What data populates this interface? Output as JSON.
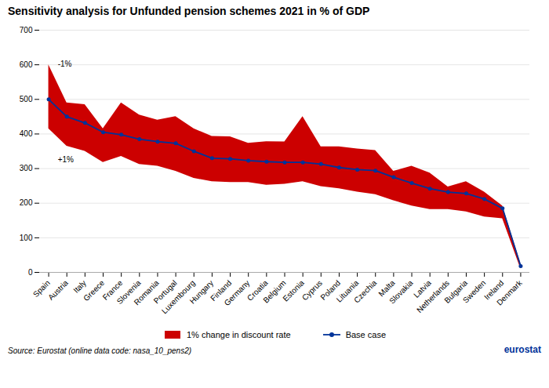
{
  "chart_data": {
    "type": "line",
    "title": "Sensitivity analysis for Unfunded pension schemes 2021 in % of GDP",
    "categories": [
      "Spain",
      "Austria",
      "Italy",
      "Greece",
      "France",
      "Slovenia",
      "Romania",
      "Portugal",
      "Luxembourg",
      "Hungary",
      "Finland",
      "Germany",
      "Croatia",
      "Belgium",
      "Estonia",
      "Cyprus",
      "Poland",
      "Lituania",
      "Czechia",
      "Malta",
      "Slovakia",
      "Latvia",
      "Netherlands",
      "Bulgaria",
      "Sweden",
      "Ireland",
      "Denmark"
    ],
    "series": [
      {
        "name": "1% change in discount rate",
        "type": "area",
        "color": "#cc0000",
        "lower": [
          415,
          365,
          350,
          318,
          335,
          312,
          307,
          292,
          272,
          262,
          260,
          260,
          252,
          255,
          262,
          248,
          242,
          232,
          225,
          207,
          192,
          182,
          182,
          175,
          160,
          155,
          10
        ],
        "upper": [
          600,
          490,
          485,
          415,
          490,
          455,
          440,
          450,
          415,
          393,
          392,
          373,
          378,
          377,
          450,
          363,
          363,
          357,
          352,
          292,
          307,
          287,
          247,
          262,
          232,
          192,
          25
        ]
      },
      {
        "name": "Base case",
        "type": "line",
        "color": "#003399",
        "marker": "circle",
        "values": [
          500,
          450,
          432,
          405,
          398,
          385,
          378,
          373,
          350,
          330,
          328,
          323,
          320,
          318,
          318,
          313,
          303,
          297,
          294,
          275,
          258,
          242,
          232,
          228,
          212,
          185,
          18
        ]
      }
    ],
    "ylim": [
      0,
      700
    ],
    "yticks": [
      0,
      100,
      200,
      300,
      400,
      500,
      600,
      700
    ],
    "grid": true,
    "legend": "bottom",
    "annotations": [
      {
        "text": "-1%",
        "x": "Spain",
        "y": 610
      },
      {
        "text": "+1%",
        "x": "Spain",
        "y": 335
      }
    ],
    "caption": "Source: Eurostat (online data code: nasa_10_pens2)",
    "credit": {
      "text": "eurostat",
      "color": "#003399"
    }
  }
}
